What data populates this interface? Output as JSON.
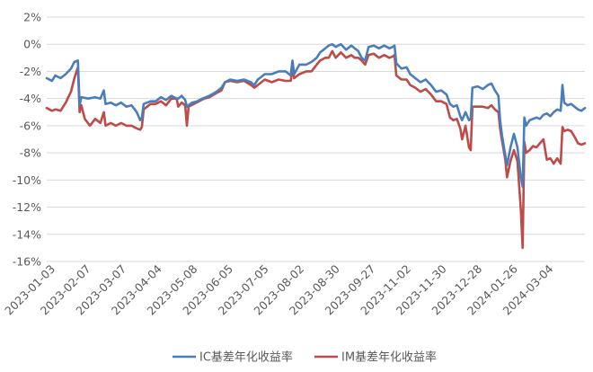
{
  "chart_data": {
    "type": "line",
    "title": "",
    "xlabel": "",
    "ylabel": "",
    "ylim": [
      -16,
      2
    ],
    "y_unit": "%",
    "grid": "horizontal",
    "legend_position": "bottom",
    "y_ticks": [
      "2%",
      "0%",
      "-2%",
      "-4%",
      "-6%",
      "-8%",
      "-10%",
      "-12%",
      "-14%",
      "-16%"
    ],
    "x_ticks": [
      "2023-01-03",
      "2023-02-07",
      "2023-03-07",
      "2023-04-04",
      "2023-05-08",
      "2023-06-05",
      "2023-07-05",
      "2023-08-02",
      "2023-08-30",
      "2023-09-27",
      "2023-11-02",
      "2023-11-30",
      "2023-12-28",
      "2024-01-26",
      "2024-03-04"
    ],
    "series": [
      {
        "name": "IC基差年化收益率",
        "color": "#4a7ebb",
        "points": [
          [
            0,
            -2.5
          ],
          [
            3,
            -2.7
          ],
          [
            5,
            -2.3
          ],
          [
            8,
            -2.5
          ],
          [
            11,
            -2.2
          ],
          [
            14,
            -1.8
          ],
          [
            16,
            -1.3
          ],
          [
            18,
            -1.2
          ],
          [
            19,
            -4.5
          ],
          [
            20,
            -3.9
          ],
          [
            24,
            -4.0
          ],
          [
            28,
            -3.9
          ],
          [
            31,
            -4.0
          ],
          [
            33,
            -3.4
          ],
          [
            34,
            -4.4
          ],
          [
            37,
            -4.3
          ],
          [
            40,
            -4.5
          ],
          [
            43,
            -4.3
          ],
          [
            46,
            -4.6
          ],
          [
            49,
            -4.5
          ],
          [
            52,
            -5.0
          ],
          [
            54,
            -5.6
          ],
          [
            55,
            -5.4
          ],
          [
            56,
            -4.4
          ],
          [
            60,
            -4.2
          ],
          [
            63,
            -4.2
          ],
          [
            66,
            -3.9
          ],
          [
            69,
            -4.1
          ],
          [
            72,
            -3.8
          ],
          [
            75,
            -4.0
          ],
          [
            76,
            -4.0
          ],
          [
            78,
            -3.8
          ],
          [
            80,
            -4.1
          ],
          [
            81,
            -4.6
          ],
          [
            84,
            -4.3
          ],
          [
            87,
            -4.2
          ],
          [
            90,
            -4.0
          ],
          [
            94,
            -3.8
          ],
          [
            98,
            -3.5
          ],
          [
            101,
            -3.2
          ],
          [
            103,
            -2.8
          ],
          [
            106,
            -2.6
          ],
          [
            110,
            -2.7
          ],
          [
            114,
            -2.6
          ],
          [
            118,
            -2.8
          ],
          [
            120,
            -3.0
          ],
          [
            122,
            -2.6
          ],
          [
            126,
            -2.2
          ],
          [
            130,
            -2.2
          ],
          [
            134,
            -2.0
          ],
          [
            138,
            -2.0
          ],
          [
            141,
            -2.3
          ],
          [
            142,
            -1.2
          ],
          [
            143,
            -2.2
          ],
          [
            146,
            -1.5
          ],
          [
            150,
            -1.5
          ],
          [
            153,
            -1.3
          ],
          [
            156,
            -1.0
          ],
          [
            158,
            -0.6
          ],
          [
            161,
            -0.3
          ],
          [
            163,
            -0.1
          ],
          [
            165,
            0.0
          ],
          [
            167,
            -0.2
          ],
          [
            170,
            0.0
          ],
          [
            173,
            -0.4
          ],
          [
            176,
            -0.1
          ],
          [
            178,
            -0.3
          ],
          [
            180,
            -0.5
          ],
          [
            182,
            -1.0
          ],
          [
            184,
            -1.2
          ],
          [
            186,
            -0.2
          ],
          [
            189,
            -0.1
          ],
          [
            192,
            -0.3
          ],
          [
            195,
            -0.1
          ],
          [
            198,
            -0.3
          ],
          [
            200,
            -0.2
          ],
          [
            201,
            -0.1
          ],
          [
            202,
            -1.4
          ],
          [
            205,
            -1.8
          ],
          [
            208,
            -1.7
          ],
          [
            210,
            -2.2
          ],
          [
            213,
            -2.5
          ],
          [
            216,
            -2.8
          ],
          [
            219,
            -2.6
          ],
          [
            222,
            -3.0
          ],
          [
            225,
            -3.5
          ],
          [
            228,
            -3.4
          ],
          [
            231,
            -3.7
          ],
          [
            233,
            -4.4
          ],
          [
            235,
            -4.6
          ],
          [
            237,
            -4.5
          ],
          [
            239,
            -5.3
          ],
          [
            240,
            -5.6
          ],
          [
            242,
            -5.0
          ],
          [
            244,
            -5.6
          ],
          [
            245,
            -5.5
          ],
          [
            246,
            -3.2
          ],
          [
            249,
            -3.1
          ],
          [
            252,
            -3.3
          ],
          [
            255,
            -3.0
          ],
          [
            257,
            -2.9
          ],
          [
            259,
            -3.4
          ],
          [
            261,
            -3.8
          ],
          [
            262,
            -5.6
          ],
          [
            263,
            -6.6
          ],
          [
            265,
            -8.2
          ],
          [
            266,
            -8.9
          ],
          [
            268,
            -7.6
          ],
          [
            270,
            -6.6
          ],
          [
            272,
            -7.6
          ],
          [
            274,
            -9.8
          ],
          [
            275,
            -10.5
          ],
          [
            276,
            -5.4
          ],
          [
            277,
            -6.0
          ],
          [
            279,
            -5.6
          ],
          [
            281,
            -5.5
          ],
          [
            283,
            -5.4
          ],
          [
            285,
            -5.5
          ],
          [
            287,
            -5.2
          ],
          [
            289,
            -5.1
          ],
          [
            291,
            -5.3
          ],
          [
            293,
            -5.0
          ],
          [
            295,
            -4.8
          ],
          [
            297,
            -4.9
          ],
          [
            298,
            -3.0
          ],
          [
            299,
            -4.3
          ],
          [
            301,
            -4.5
          ],
          [
            303,
            -4.4
          ],
          [
            305,
            -4.6
          ],
          [
            307,
            -4.8
          ],
          [
            309,
            -4.9
          ],
          [
            311,
            -4.7
          ]
        ]
      },
      {
        "name": "IM基差年化收益率",
        "color": "#be4b48",
        "points": [
          [
            0,
            -4.7
          ],
          [
            3,
            -4.9
          ],
          [
            5,
            -4.8
          ],
          [
            8,
            -4.9
          ],
          [
            11,
            -4.3
          ],
          [
            14,
            -3.5
          ],
          [
            16,
            -2.5
          ],
          [
            18,
            -1.7
          ],
          [
            19,
            -5.0
          ],
          [
            20,
            -4.5
          ],
          [
            22,
            -5.5
          ],
          [
            25,
            -6.0
          ],
          [
            28,
            -5.5
          ],
          [
            31,
            -5.8
          ],
          [
            33,
            -5.0
          ],
          [
            34,
            -6.0
          ],
          [
            37,
            -5.8
          ],
          [
            40,
            -6.0
          ],
          [
            43,
            -5.8
          ],
          [
            46,
            -6.0
          ],
          [
            49,
            -6.0
          ],
          [
            52,
            -6.2
          ],
          [
            54,
            -6.3
          ],
          [
            55,
            -6.1
          ],
          [
            56,
            -4.8
          ],
          [
            60,
            -4.4
          ],
          [
            63,
            -4.4
          ],
          [
            66,
            -4.2
          ],
          [
            69,
            -4.5
          ],
          [
            72,
            -4.0
          ],
          [
            75,
            -4.0
          ],
          [
            76,
            -4.6
          ],
          [
            78,
            -4.3
          ],
          [
            80,
            -4.5
          ],
          [
            81,
            -6.0
          ],
          [
            82,
            -4.6
          ],
          [
            85,
            -4.4
          ],
          [
            88,
            -4.2
          ],
          [
            91,
            -4.0
          ],
          [
            94,
            -3.9
          ],
          [
            98,
            -3.6
          ],
          [
            101,
            -3.4
          ],
          [
            103,
            -2.8
          ],
          [
            106,
            -2.7
          ],
          [
            110,
            -2.8
          ],
          [
            114,
            -2.7
          ],
          [
            118,
            -3.0
          ],
          [
            120,
            -3.2
          ],
          [
            122,
            -3.0
          ],
          [
            126,
            -2.6
          ],
          [
            130,
            -2.8
          ],
          [
            134,
            -2.6
          ],
          [
            138,
            -2.7
          ],
          [
            141,
            -2.7
          ],
          [
            142,
            -1.8
          ],
          [
            143,
            -2.5
          ],
          [
            146,
            -2.2
          ],
          [
            150,
            -2.0
          ],
          [
            153,
            -2.0
          ],
          [
            156,
            -1.5
          ],
          [
            158,
            -1.2
          ],
          [
            161,
            -1.0
          ],
          [
            163,
            -1.0
          ],
          [
            165,
            -0.5
          ],
          [
            167,
            -1.0
          ],
          [
            170,
            -0.6
          ],
          [
            173,
            -1.0
          ],
          [
            176,
            -0.8
          ],
          [
            178,
            -1.0
          ],
          [
            180,
            -1.0
          ],
          [
            182,
            -1.2
          ],
          [
            184,
            -1.5
          ],
          [
            186,
            -0.8
          ],
          [
            189,
            -0.7
          ],
          [
            192,
            -1.0
          ],
          [
            195,
            -0.8
          ],
          [
            198,
            -1.0
          ],
          [
            200,
            -0.9
          ],
          [
            201,
            -0.8
          ],
          [
            202,
            -2.3
          ],
          [
            205,
            -2.6
          ],
          [
            208,
            -2.6
          ],
          [
            210,
            -3.0
          ],
          [
            213,
            -3.2
          ],
          [
            216,
            -3.5
          ],
          [
            219,
            -3.3
          ],
          [
            222,
            -3.7
          ],
          [
            225,
            -4.2
          ],
          [
            228,
            -4.2
          ],
          [
            231,
            -4.4
          ],
          [
            233,
            -5.4
          ],
          [
            235,
            -5.6
          ],
          [
            237,
            -5.5
          ],
          [
            239,
            -6.2
          ],
          [
            240,
            -7.0
          ],
          [
            242,
            -6.0
          ],
          [
            244,
            -7.6
          ],
          [
            245,
            -7.8
          ],
          [
            246,
            -4.6
          ],
          [
            249,
            -4.6
          ],
          [
            252,
            -4.6
          ],
          [
            255,
            -4.7
          ],
          [
            257,
            -4.5
          ],
          [
            259,
            -4.8
          ],
          [
            261,
            -5.0
          ],
          [
            262,
            -6.2
          ],
          [
            263,
            -7.0
          ],
          [
            265,
            -8.5
          ],
          [
            266,
            -9.8
          ],
          [
            268,
            -8.6
          ],
          [
            270,
            -7.8
          ],
          [
            272,
            -8.6
          ],
          [
            274,
            -12.2
          ],
          [
            275,
            -15.0
          ],
          [
            276,
            -7.2
          ],
          [
            277,
            -8.0
          ],
          [
            279,
            -7.8
          ],
          [
            281,
            -7.5
          ],
          [
            283,
            -7.6
          ],
          [
            285,
            -7.3
          ],
          [
            287,
            -7.0
          ],
          [
            289,
            -8.5
          ],
          [
            291,
            -8.4
          ],
          [
            293,
            -8.8
          ],
          [
            295,
            -8.4
          ],
          [
            297,
            -8.8
          ],
          [
            298,
            -6.1
          ],
          [
            299,
            -6.4
          ],
          [
            301,
            -6.3
          ],
          [
            303,
            -6.4
          ],
          [
            305,
            -6.8
          ],
          [
            307,
            -7.3
          ],
          [
            309,
            -7.4
          ],
          [
            311,
            -7.3
          ]
        ]
      }
    ]
  }
}
